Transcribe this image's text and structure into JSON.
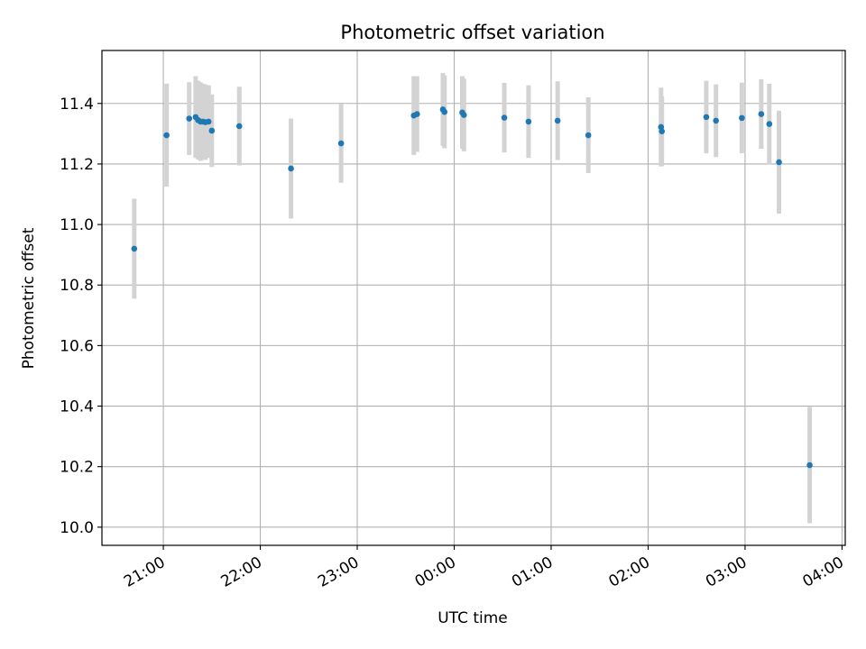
{
  "chart_data": {
    "type": "scatter",
    "title": "Photometric offset variation",
    "xlabel": "UTC time",
    "ylabel": "Photometric offset",
    "x_unit": "UTC date-time",
    "xlim": [
      "2000-01-01T20:22:00",
      "2000-01-02T04:02:00"
    ],
    "ylim": [
      9.94,
      11.575
    ],
    "xticks": [
      {
        "value": "2000-01-01T21:00:00",
        "label": "21:00"
      },
      {
        "value": "2000-01-01T22:00:00",
        "label": "22:00"
      },
      {
        "value": "2000-01-01T23:00:00",
        "label": "23:00"
      },
      {
        "value": "2000-01-02T00:00:00",
        "label": "00:00"
      },
      {
        "value": "2000-01-02T01:00:00",
        "label": "01:00"
      },
      {
        "value": "2000-01-02T02:00:00",
        "label": "02:00"
      },
      {
        "value": "2000-01-02T03:00:00",
        "label": "03:00"
      },
      {
        "value": "2000-01-02T04:00:00",
        "label": "04:00"
      }
    ],
    "yticks": [
      10.0,
      10.2,
      10.4,
      10.6,
      10.8,
      11.0,
      11.2,
      11.4
    ],
    "ytick_labels": [
      "10.0",
      "10.2",
      "10.4",
      "10.6",
      "10.8",
      "11.0",
      "11.2",
      "11.4"
    ],
    "grid": true,
    "point_color": "#1f77b4",
    "error_color": "#d3d3d3",
    "series": [
      {
        "points": [
          {
            "x": "2000-01-01T20:42:00",
            "y": 10.92,
            "err": 0.165
          },
          {
            "x": "2000-01-01T21:02:00",
            "y": 11.295,
            "err": 0.17
          },
          {
            "x": "2000-01-01T21:16:00",
            "y": 11.35,
            "err": 0.12
          },
          {
            "x": "2000-01-01T21:20:00",
            "y": 11.355,
            "err": 0.135
          },
          {
            "x": "2000-01-01T21:21:30",
            "y": 11.345,
            "err": 0.13
          },
          {
            "x": "2000-01-01T21:23:00",
            "y": 11.34,
            "err": 0.13
          },
          {
            "x": "2000-01-01T21:24:30",
            "y": 11.34,
            "err": 0.125
          },
          {
            "x": "2000-01-01T21:26:00",
            "y": 11.338,
            "err": 0.125
          },
          {
            "x": "2000-01-01T21:28:00",
            "y": 11.34,
            "err": 0.12
          },
          {
            "x": "2000-01-01T21:30:00",
            "y": 11.31,
            "err": 0.12
          },
          {
            "x": "2000-01-01T21:47:00",
            "y": 11.325,
            "err": 0.13
          },
          {
            "x": "2000-01-01T22:19:00",
            "y": 11.185,
            "err": 0.165
          },
          {
            "x": "2000-01-01T22:50:00",
            "y": 11.268,
            "err": 0.13
          },
          {
            "x": "2000-01-01T23:35:00",
            "y": 11.36,
            "err": 0.13
          },
          {
            "x": "2000-01-01T23:37:00",
            "y": 11.365,
            "err": 0.125
          },
          {
            "x": "2000-01-01T23:53:00",
            "y": 11.38,
            "err": 0.12
          },
          {
            "x": "2000-01-01T23:54:00",
            "y": 11.372,
            "err": 0.12
          },
          {
            "x": "2000-01-02T00:05:00",
            "y": 11.37,
            "err": 0.12
          },
          {
            "x": "2000-01-02T00:06:00",
            "y": 11.362,
            "err": 0.12
          },
          {
            "x": "2000-01-02T00:31:00",
            "y": 11.353,
            "err": 0.115
          },
          {
            "x": "2000-01-02T00:46:00",
            "y": 11.34,
            "err": 0.12
          },
          {
            "x": "2000-01-02T01:04:00",
            "y": 11.343,
            "err": 0.13
          },
          {
            "x": "2000-01-02T01:23:00",
            "y": 11.295,
            "err": 0.125
          },
          {
            "x": "2000-01-02T02:08:00",
            "y": 11.322,
            "err": 0.13
          },
          {
            "x": "2000-01-02T02:08:30",
            "y": 11.308,
            "err": 0.115
          },
          {
            "x": "2000-01-02T02:36:00",
            "y": 11.355,
            "err": 0.12
          },
          {
            "x": "2000-01-02T02:42:00",
            "y": 11.343,
            "err": 0.12
          },
          {
            "x": "2000-01-02T02:58:00",
            "y": 11.352,
            "err": 0.117
          },
          {
            "x": "2000-01-02T03:10:00",
            "y": 11.365,
            "err": 0.115
          },
          {
            "x": "2000-01-02T03:15:00",
            "y": 11.332,
            "err": 0.133
          },
          {
            "x": "2000-01-02T03:21:00",
            "y": 11.206,
            "err": 0.17
          },
          {
            "x": "2000-01-02T03:40:00",
            "y": 10.205,
            "err": 0.192
          }
        ]
      }
    ]
  }
}
